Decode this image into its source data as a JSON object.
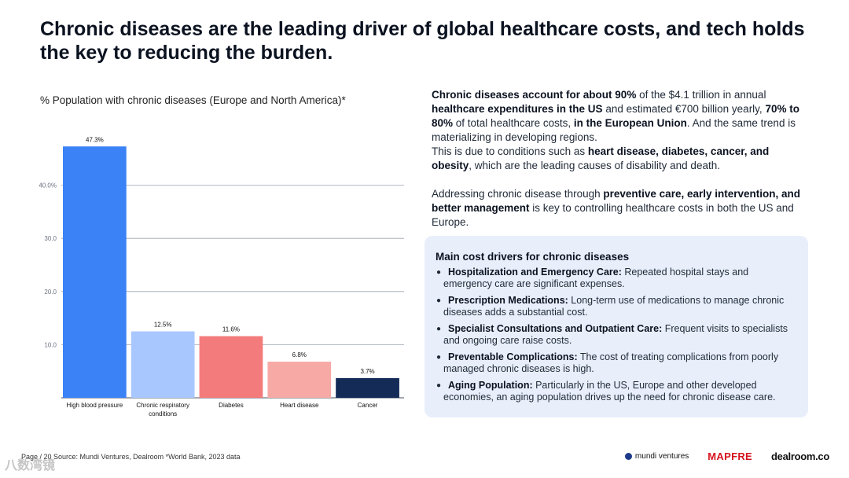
{
  "title": "Chronic diseases are the leading driver of global healthcare costs, and tech holds the key to reducing the burden.",
  "chart_subtitle": "% Population with chronic diseases (Europe and North America)*",
  "chart_data": {
    "type": "bar",
    "title": "% Population with chronic diseases (Europe and North America)*",
    "categories": [
      "High blood pressure",
      "Chronic respiratory conditions",
      "Diabetes",
      "Heart disease",
      "Cancer"
    ],
    "category_lines": [
      [
        "High blood pressure"
      ],
      [
        "Chronic respiratory",
        "conditions"
      ],
      [
        "Diabetes"
      ],
      [
        "Heart disease"
      ],
      [
        "Cancer"
      ]
    ],
    "values": [
      47.3,
      12.5,
      11.6,
      6.8,
      3.7
    ],
    "value_labels": [
      "47.3%",
      "12.5%",
      "11.6%",
      "6.8%",
      "3.7%"
    ],
    "colors": [
      "#3b82f6",
      "#a9c7ff",
      "#f47b7b",
      "#f7a9a6",
      "#142a57"
    ],
    "yticks": [
      10,
      20,
      30,
      40
    ],
    "ytick_labels": [
      "10.0",
      "20.0",
      "30.0",
      "40.0%"
    ],
    "ylim": [
      0,
      50
    ],
    "grid": true,
    "xlabel": "",
    "ylabel": ""
  },
  "right": {
    "p1": [
      {
        "t": "Chronic diseases account for about 90%",
        "b": true
      },
      {
        "t": " of the $4.1 trillion in annual ",
        "b": false
      },
      {
        "t": "healthcare expenditures in the US",
        "b": true
      },
      {
        "t": " and estimated €700 billion yearly, ",
        "b": false
      },
      {
        "t": "70% to 80%",
        "b": true
      },
      {
        "t": " of total healthcare costs, ",
        "b": false
      },
      {
        "t": "in the European Union",
        "b": true
      },
      {
        "t": ". And the same trend is materializing in developing regions.",
        "b": false
      }
    ],
    "p2": [
      {
        "t": "This is due to conditions such as ",
        "b": false
      },
      {
        "t": "heart disease, diabetes, cancer, and obesity",
        "b": true
      },
      {
        "t": ", which are the leading causes of disability and death.",
        "b": false
      }
    ],
    "p3": [
      {
        "t": "Addressing chronic disease through ",
        "b": false
      },
      {
        "t": "preventive care, early intervention, and better management",
        "b": true
      },
      {
        "t": " is key to controlling healthcare costs in both the US and Europe.",
        "b": false
      }
    ]
  },
  "drivers": {
    "heading": "Main cost drivers for chronic diseases",
    "items": [
      {
        "title": "Hospitalization and Emergency Care:",
        "text": " Repeated hospital stays and emergency care are significant expenses."
      },
      {
        "title": "Prescription Medications:",
        "text": " Long-term use of medications to manage chronic diseases adds a substantial cost."
      },
      {
        "title": "Specialist Consultations and Outpatient Care:",
        "text": " Frequent visits to specialists and ongoing care raise costs."
      },
      {
        "title": "Preventable Complications:",
        "text": " The cost of treating complications from poorly managed chronic diseases is high."
      },
      {
        "title": "Aging Population:",
        "text": " Particularly in the US, Europe and other developed economies, an aging population drives up the need for chronic disease care."
      }
    ]
  },
  "footer": {
    "left": "Page / 20   Source: Mundi Ventures, Dealroom  *World Bank, 2023 data",
    "logo_mundi": "mundi ventures",
    "logo_mapfre": "MAPFRE",
    "logo_dealroom": "dealroom.co",
    "watermark": "八数湾镜"
  }
}
